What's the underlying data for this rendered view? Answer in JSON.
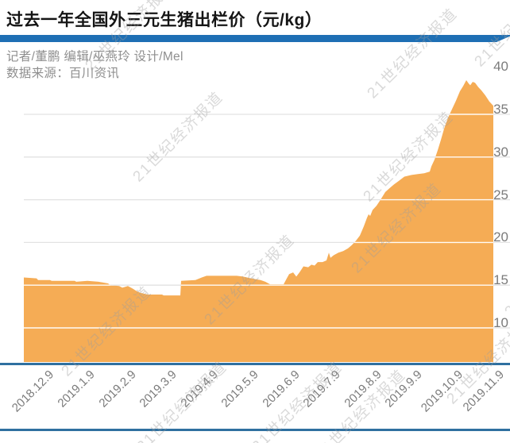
{
  "title": "过去一年全国外三元生猪出栏价（元/kg）",
  "credits": {
    "line1": "记者/董鹏  编辑/巫燕玲  设计/Mel",
    "line2": "数据来源：百川资讯"
  },
  "watermark": {
    "text": "21世纪经济报道"
  },
  "colors": {
    "accent_blue": "#1E6FB4",
    "axis_blue": "#2F70A0",
    "area_orange": "#F5AC55",
    "grid_gray": "#E2E2E2",
    "grid_white": "#FFFFFF",
    "label_gray": "#7B7B7B",
    "credit_gray": "#8F8F8F"
  },
  "chart_data": {
    "type": "area",
    "title": "过去一年全国外三元生猪出栏价（元/kg）",
    "ylabel": "元/kg",
    "xlabel": "",
    "legend_position": "none",
    "grid": true,
    "x_tick_labels": [
      "2018.12.9",
      "2019.1.9",
      "2019.2.9",
      "2019.3.9",
      "2019.4.9",
      "2019.5.9",
      "2019.6.9",
      "2019.7.9",
      "2019.8.9",
      "2019.9.9",
      "2019.10.9",
      "2019.11.9"
    ],
    "y_ticks": [
      10,
      15,
      20,
      25,
      30,
      35,
      40
    ],
    "gridline_values": [
      10,
      15,
      20,
      25,
      30,
      35
    ],
    "ylim": [
      6,
      40.3
    ],
    "series": [
      {
        "name": "全国外三元生猪出栏价(元/kg)",
        "points": [
          [
            30,
            15.9
          ],
          [
            46,
            15.8
          ],
          [
            48,
            15.6
          ],
          [
            63,
            15.6
          ],
          [
            65,
            15.5
          ],
          [
            94,
            15.5
          ],
          [
            96,
            15.4
          ],
          [
            110,
            15.5
          ],
          [
            124,
            15.4
          ],
          [
            136,
            15.2
          ],
          [
            139,
            15.0
          ],
          [
            150,
            14.9
          ],
          [
            154,
            14.7
          ],
          [
            161,
            14.9
          ],
          [
            167,
            14.6
          ],
          [
            172,
            14.3
          ],
          [
            177,
            14.1
          ],
          [
            186,
            13.9
          ],
          [
            204,
            13.9
          ],
          [
            206,
            13.8
          ],
          [
            227,
            13.8
          ],
          [
            228,
            15.5
          ],
          [
            246,
            15.6
          ],
          [
            254,
            15.9
          ],
          [
            260,
            16.1
          ],
          [
            298,
            16.1
          ],
          [
            306,
            16.0
          ],
          [
            316,
            15.8
          ],
          [
            328,
            15.6
          ],
          [
            334,
            15.4
          ],
          [
            340,
            15.1
          ],
          [
            357,
            15.1
          ],
          [
            361,
            15.8
          ],
          [
            364,
            16.3
          ],
          [
            369,
            16.5
          ],
          [
            373,
            16.0
          ],
          [
            377,
            16.5
          ],
          [
            382,
            17.2
          ],
          [
            388,
            17.1
          ],
          [
            392,
            17.4
          ],
          [
            396,
            17.3
          ],
          [
            400,
            17.7
          ],
          [
            406,
            17.7
          ],
          [
            411,
            17.9
          ],
          [
            414,
            18.8
          ],
          [
            416,
            18.2
          ],
          [
            420,
            18.5
          ],
          [
            426,
            18.8
          ],
          [
            432,
            19.0
          ],
          [
            438,
            19.3
          ],
          [
            443,
            19.7
          ],
          [
            448,
            20.2
          ],
          [
            453,
            20.8
          ],
          [
            458,
            21.9
          ],
          [
            462,
            22.9
          ],
          [
            464,
            23.3
          ],
          [
            466,
            23.1
          ],
          [
            469,
            23.8
          ],
          [
            474,
            24.3
          ],
          [
            479,
            25.0
          ],
          [
            485,
            25.9
          ],
          [
            491,
            26.4
          ],
          [
            496,
            26.8
          ],
          [
            502,
            27.2
          ],
          [
            509,
            27.7
          ],
          [
            518,
            27.9
          ],
          [
            526,
            28.0
          ],
          [
            534,
            28.1
          ],
          [
            541,
            28.3
          ],
          [
            543,
            28.9
          ],
          [
            547,
            29.7
          ],
          [
            551,
            30.8
          ],
          [
            555,
            32.0
          ],
          [
            559,
            33.3
          ],
          [
            564,
            34.6
          ],
          [
            569,
            35.6
          ],
          [
            574,
            36.6
          ],
          [
            579,
            37.7
          ],
          [
            583,
            38.3
          ],
          [
            587,
            39.0
          ],
          [
            590,
            38.6
          ],
          [
            592,
            38.4
          ],
          [
            595,
            38.8
          ],
          [
            598,
            38.7
          ],
          [
            602,
            38.2
          ],
          [
            606,
            37.8
          ],
          [
            611,
            37.2
          ],
          [
            616,
            36.5
          ],
          [
            621,
            36.0
          ]
        ]
      }
    ]
  }
}
